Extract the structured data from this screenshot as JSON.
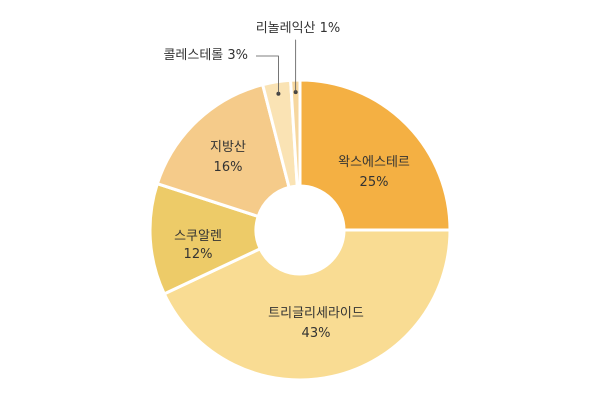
{
  "chart_data": {
    "type": "pie",
    "donut": true,
    "title": "",
    "categories": [
      "왁스에스테르",
      "트리글리세라이드",
      "스쿠알렌",
      "지방산",
      "콜레스테롤",
      "리놀레익산"
    ],
    "values": [
      25,
      43,
      12,
      16,
      3,
      1
    ],
    "value_labels": [
      "25%",
      "43%",
      "12%",
      "16%",
      "3%",
      "1%"
    ],
    "callout_labels": [
      "콜레스테롤 3%",
      "리놀레익산 1%"
    ],
    "colors": [
      "#F4B043",
      "#F9DC93",
      "#EDCB68",
      "#F5CB8A",
      "#FAE3B4",
      "#F6D79F"
    ],
    "legend": "none"
  }
}
